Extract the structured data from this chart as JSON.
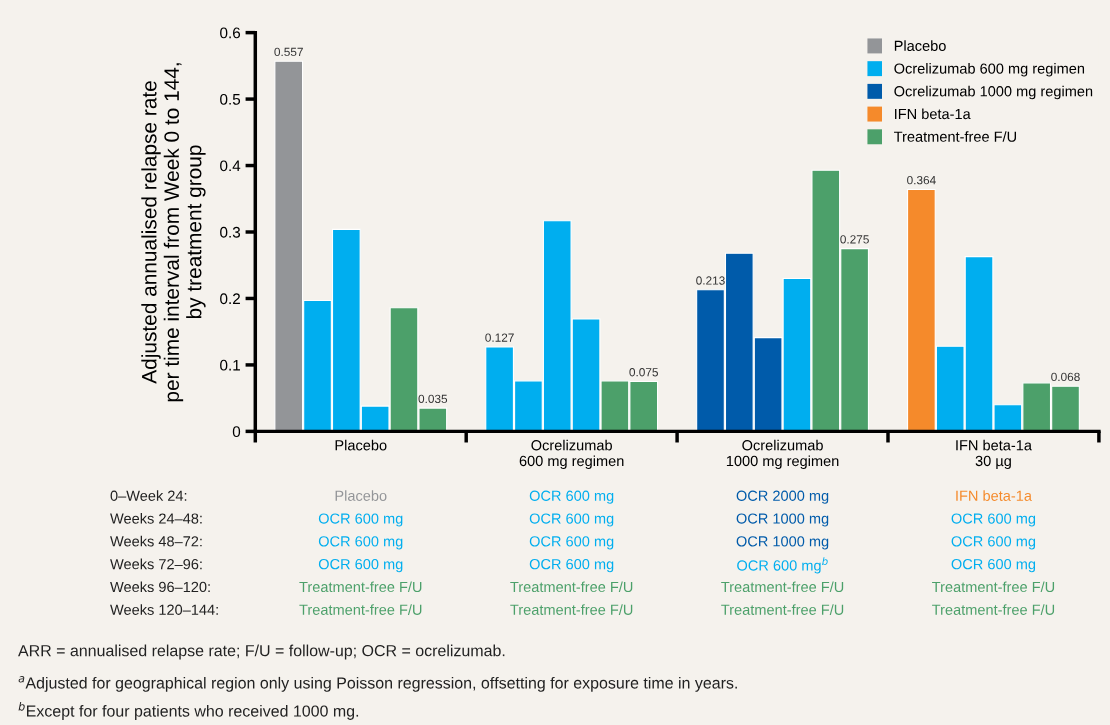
{
  "chart_data": {
    "type": "bar",
    "ylabel": "Adjusted annualised relapse rate\nper time interval from Week 0 to 144,\nby treatment group",
    "categories": [
      "Placebo",
      "Ocrelizumab\n600 mg regimen",
      "Ocrelizumab\n1000 mg regimen",
      "IFN beta-1a\n30 µg"
    ],
    "series": [
      {
        "colors": [
          "#939598",
          "#00aeef",
          "#005baa",
          "#f58a2b"
        ],
        "values": [
          0.557,
          0.127,
          0.213,
          0.364
        ],
        "value_labels": [
          "0.557",
          "0.127",
          "0.213",
          "0.364"
        ]
      },
      {
        "colors": [
          "#00aeef",
          "#00aeef",
          "#005baa",
          "#00aeef"
        ],
        "values": [
          0.197,
          0.076,
          0.268,
          0.128
        ]
      },
      {
        "colors": [
          "#00aeef",
          "#00aeef",
          "#005baa",
          "#00aeef"
        ],
        "values": [
          0.304,
          0.317,
          0.141,
          0.263
        ]
      },
      {
        "colors": [
          "#00aeef",
          "#00aeef",
          "#00aeef",
          "#00aeef"
        ],
        "values": [
          0.038,
          0.169,
          0.23,
          0.04
        ]
      },
      {
        "colors": [
          "#4ca06a",
          "#4ca06a",
          "#4ca06a",
          "#4ca06a"
        ],
        "values": [
          0.186,
          0.076,
          0.393,
          0.073
        ]
      },
      {
        "colors": [
          "#4ca06a",
          "#4ca06a",
          "#4ca06a",
          "#4ca06a"
        ],
        "values": [
          0.035,
          0.075,
          0.275,
          0.068
        ],
        "value_labels": [
          "0.035",
          "0.075",
          "0.275",
          "0.068"
        ]
      },
      {
        "name": "Placebo",
        "color": "#939598",
        "values": [
          null,
          null,
          null,
          null
        ]
      },
      {
        "name": "Ocrelizumab 600 mg regimen",
        "color": "#00aeef",
        "values": [
          null,
          null,
          null,
          null
        ]
      },
      {
        "name": "Ocrelizumab 1000 mg regimen",
        "color": "#005baa",
        "values": [
          null,
          null,
          null,
          null
        ]
      },
      {
        "name": "IFN beta-1a",
        "color": "#f58a2b",
        "values": [
          null,
          null,
          null,
          null
        ]
      },
      {
        "name": "Treatment-free F/U",
        "color": "#4ca06a",
        "values": [
          null,
          null,
          null,
          null
        ]
      }
    ],
    "ylim": [
      0,
      0.6
    ],
    "yticks": [
      0,
      0.1,
      0.2,
      0.3,
      0.4,
      0.5,
      0.6
    ],
    "grid": false,
    "legend": "top right",
    "annotations": [
      "0–Week 24:",
      "Placebo",
      "OCR 600 mg",
      "OCR 2000 mg",
      "IFN beta-1a",
      "Weeks 24–48:",
      "OCR 600 mg",
      "OCR 600 mg",
      "OCR 1000 mg",
      "OCR 600 mg",
      "Weeks 48–72:",
      "OCR 600 mg",
      "OCR 600 mg",
      "OCR 1000 mg",
      "OCR 600 mg",
      "Weeks 72–96:",
      "OCR 600 mg",
      "OCR 600 mg",
      "OCR 600 mg$^{b}$",
      "OCR 600 mg",
      "Weeks 96–120:",
      "Treatment-free F/U",
      "Treatment-free F/U",
      "Treatment-free F/U",
      "Treatment-free F/U",
      "Weeks 120–144:",
      "Treatment-free F/U",
      "Treatment-free F/U",
      "Treatment-free F/U",
      "Treatment-free F/U",
      "ARR = annualised relapse rate; F/U = follow-up; OCR = ocrelizumab.",
      "$^{a}$Adjusted for geographical region only using Poisson regression, offsetting for exposure time in years.",
      "$^{b}$Except for four patients who received 1000 mg."
    ]
  }
}
